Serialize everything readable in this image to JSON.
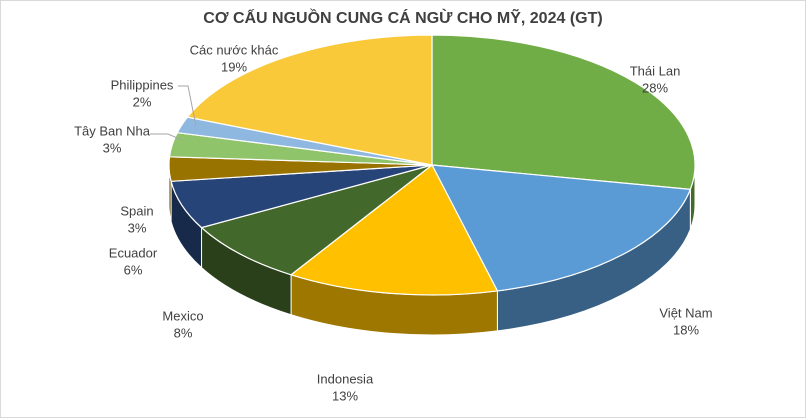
{
  "chart_data": {
    "type": "pie3d",
    "title": "CƠ CẤU NGUỒN CUNG CÁ NGỪ CHO MỸ, 2024 (GT)",
    "categories": [
      "Thái Lan",
      "Việt Nam",
      "Indonesia",
      "Mexico",
      "Ecuador",
      "Spain",
      "Tây Ban Nha",
      "Philippines",
      "Các nước khác"
    ],
    "values": [
      28,
      18,
      13,
      8,
      6,
      3,
      3,
      2,
      19
    ],
    "value_labels": [
      "28%",
      "18%",
      "13%",
      "8%",
      "6%",
      "3%",
      "3%",
      "2%",
      "19%"
    ],
    "colors": [
      "#70ad47",
      "#5b9bd5",
      "#ffc000",
      "#43682b",
      "#264478",
      "#997300",
      "#8fc46a",
      "#8fb8e0",
      "#f9c93a"
    ]
  }
}
